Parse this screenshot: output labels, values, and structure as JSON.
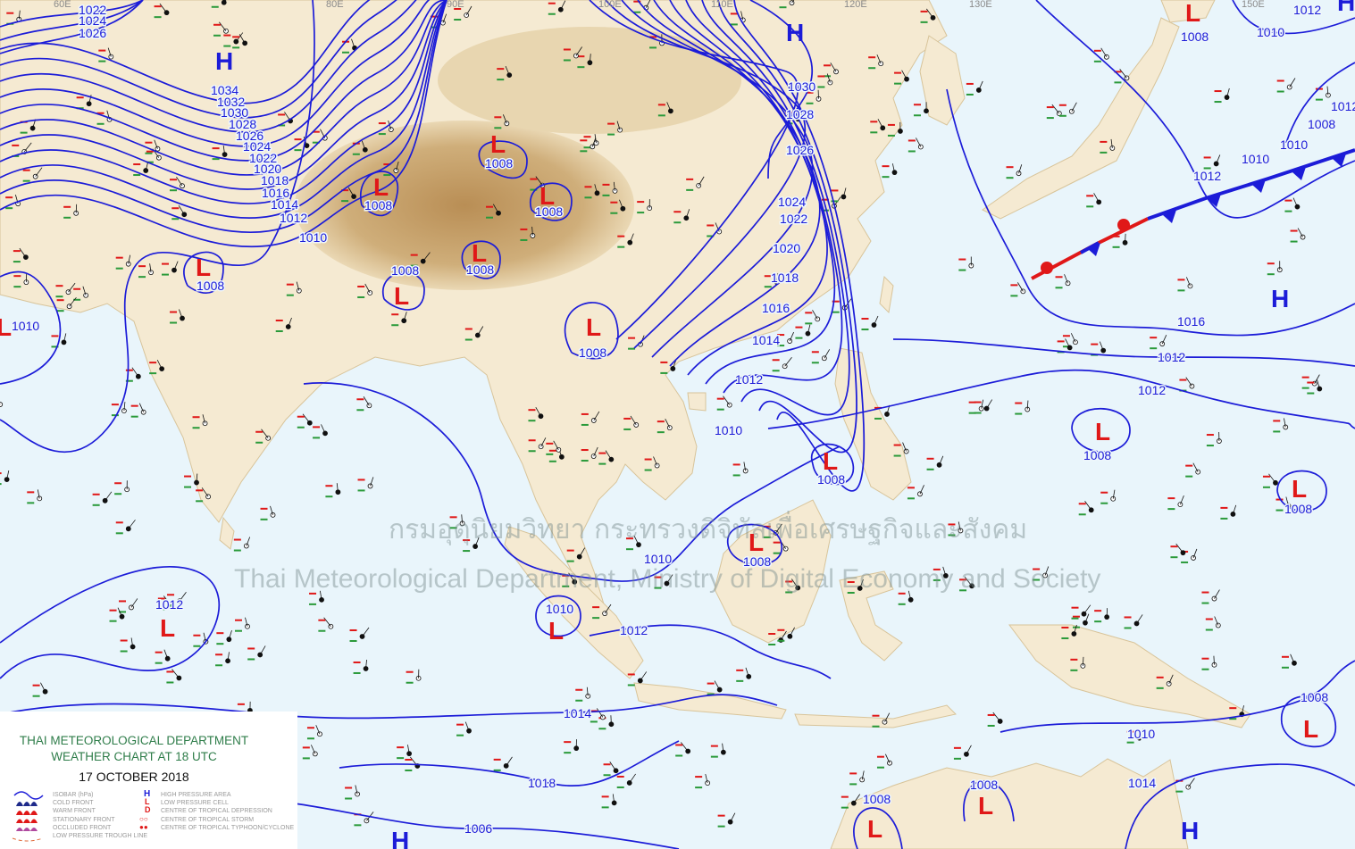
{
  "title": {
    "line1": "THAI METEOROLOGICAL DEPARTMENT",
    "line2": "WEATHER CHART AT   18  UTC",
    "date": "17 OCTOBER 2018"
  },
  "watermark": {
    "thai": "กรมอุตุนิยมวิทยา กระทรวงดิจิทัลเพื่อเศรษฐกิจและสังคม",
    "english": "Thai Meteorological Department, Ministry of Digital Economy and Society"
  },
  "longitudes": [
    "60E",
    "80E",
    "90E",
    "100E",
    "110E",
    "120E",
    "130E",
    "150E"
  ],
  "legend": {
    "left": [
      "ISOBAR (hPa)",
      "COLD FRONT",
      "WARM FRONT",
      "STATIONARY FRONT",
      "OCCLUDED FRONT",
      "LOW PRESSURE TROUGH LINE"
    ],
    "right": [
      "HIGH PRESSURE AREA",
      "LOW PRESSURE CELL",
      "CENTRE OF TROPICAL DEPRESSION",
      "CENTRE OF TROPICAL STORM",
      "CENTRE OF TROPICAL TYPHOON/CYCLONE"
    ],
    "symbols": [
      "H",
      "L",
      "D"
    ]
  },
  "highs": [
    "H",
    "H",
    "H",
    "H",
    "H",
    "H"
  ],
  "lows": [
    "L",
    "L",
    "L",
    "L",
    "L",
    "L",
    "L",
    "L",
    "L",
    "L",
    "L",
    "L",
    "L",
    "L",
    "L",
    "L",
    "L",
    "L"
  ],
  "isobar_labels": [
    "1022",
    "1024",
    "1026",
    "1034",
    "1032",
    "1030",
    "1028",
    "1026",
    "1024",
    "1022",
    "1020",
    "1018",
    "1016",
    "1014",
    "1012",
    "1010",
    "1030",
    "1028",
    "1026",
    "1024",
    "1022",
    "1020",
    "1018",
    "1016",
    "1014",
    "1012",
    "1010",
    "1008",
    "1008",
    "1008",
    "1008",
    "1008",
    "1008",
    "1008",
    "1008",
    "1008",
    "1008",
    "1008",
    "1008",
    "1008",
    "1008",
    "1008",
    "1010",
    "1010",
    "1010",
    "1010",
    "1010",
    "1010",
    "1010",
    "1012",
    "1012",
    "1012",
    "1012",
    "1012",
    "1012",
    "1014",
    "1014",
    "1016",
    "1018",
    "1006",
    "1008",
    "1012"
  ],
  "colors": {
    "isobar": "#1c1cd8",
    "high": "#1c1cd8",
    "low": "#e01818",
    "ocean": "#e9f5fb",
    "land": "#f5ead2",
    "plateau": "#c7a26a",
    "title": "#2f7d4a"
  }
}
